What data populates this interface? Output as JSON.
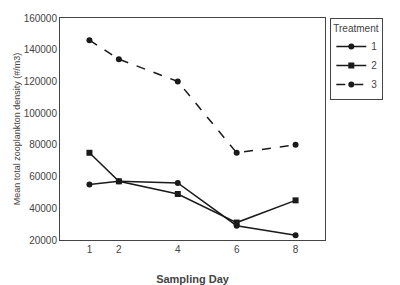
{
  "chart_data": {
    "type": "line",
    "x": [
      1,
      2,
      4,
      6,
      8
    ],
    "series": [
      {
        "name": "1",
        "color": "#1a1a1a",
        "marker": "circle",
        "line_style": "solid",
        "values": [
          55000,
          57000,
          56000,
          29000,
          23000
        ]
      },
      {
        "name": "2",
        "color": "#1a1a1a",
        "marker": "square",
        "line_style": "solid",
        "values": [
          75000,
          57000,
          49000,
          31000,
          45000
        ]
      },
      {
        "name": "3",
        "color": "#1a1a1a",
        "marker": "circle",
        "line_style": "dashed",
        "values": [
          146000,
          134000,
          120000,
          75000,
          80000
        ]
      }
    ],
    "xlabel": "Sampling Day",
    "ylabel": "Mean total zooplankton density (#/m3)",
    "xlim": [
      0,
      9
    ],
    "xticks": [
      1,
      2,
      4,
      6,
      8
    ],
    "ylim": [
      20000,
      160000
    ],
    "yticks": [
      20000,
      40000,
      60000,
      80000,
      100000,
      120000,
      140000,
      160000
    ],
    "grid": false,
    "legend": "right",
    "legend_title": "Treatment"
  }
}
